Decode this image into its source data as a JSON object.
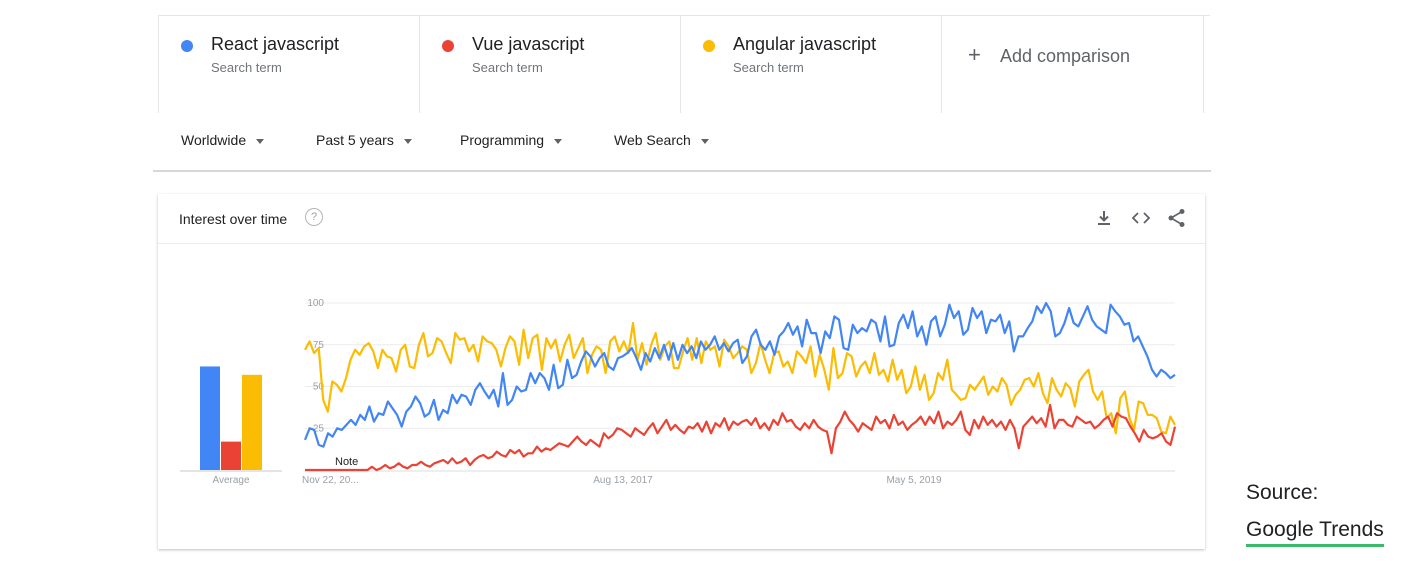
{
  "terms": [
    {
      "name": "React javascript",
      "sub": "Search term",
      "color": "#4285f4"
    },
    {
      "name": "Vue javascript",
      "sub": "Search term",
      "color": "#ea4335"
    },
    {
      "name": "Angular javascript",
      "sub": "Search term",
      "color": "#fbbc04"
    }
  ],
  "add_comparison": {
    "icon": "plus-icon",
    "label": "Add comparison"
  },
  "filters": [
    "Worldwide",
    "Past 5 years",
    "Programming",
    "Web Search"
  ],
  "card": {
    "title": "Interest over time",
    "help_icon": "question-circle-icon",
    "help_glyph": "?",
    "actions": [
      "download-icon",
      "embed-code-icon",
      "share-icon"
    ]
  },
  "chart_data": {
    "type": "line",
    "y_ticks": [
      "100",
      "75",
      "50",
      "25"
    ],
    "ylim": [
      0,
      100
    ],
    "x_ticks": [
      "Nov 22, 20...",
      "Aug 13, 2017",
      "May 5, 2019"
    ],
    "note": "Note",
    "grid": true,
    "average": {
      "label": "Average",
      "values": [
        62,
        17,
        57
      ]
    },
    "series": [
      {
        "name": "React javascript",
        "color": "#4285f4",
        "values": [
          18,
          25,
          24,
          15,
          14,
          22,
          20,
          25,
          24,
          27,
          30,
          27,
          33,
          30,
          38,
          29,
          34,
          33,
          41,
          37,
          33,
          26,
          35,
          38,
          44,
          40,
          32,
          34,
          42,
          30,
          36,
          34,
          45,
          40,
          45,
          44,
          39,
          48,
          52,
          47,
          43,
          48,
          38,
          58,
          39,
          42,
          50,
          47,
          48,
          58,
          52,
          58,
          55,
          48,
          63,
          49,
          51,
          66,
          55,
          57,
          65,
          71,
          68,
          62,
          67,
          70,
          62,
          60,
          67,
          68,
          70,
          73,
          67,
          60,
          70,
          65,
          73,
          67,
          75,
          66,
          76,
          66,
          75,
          70,
          74,
          67,
          77,
          72,
          75,
          80,
          72,
          76,
          71,
          76,
          78,
          64,
          68,
          80,
          84,
          75,
          72,
          77,
          69,
          80,
          83,
          88,
          81,
          86,
          74,
          90,
          82,
          82,
          70,
          83,
          79,
          92,
          90,
          73,
          72,
          87,
          82,
          85,
          83,
          90,
          88,
          77,
          92,
          74,
          75,
          88,
          93,
          85,
          95,
          80,
          86,
          75,
          89,
          92,
          80,
          87,
          99,
          91,
          95,
          81,
          84,
          97,
          91,
          95,
          82,
          90,
          89,
          93,
          82,
          89,
          71,
          80,
          80,
          85,
          89,
          98,
          94,
          100,
          95,
          80,
          82,
          88,
          97,
          88,
          86,
          92,
          98,
          90,
          86,
          84,
          82,
          99,
          95,
          92,
          87,
          88,
          77,
          80,
          74,
          68,
          60,
          56,
          60,
          58,
          55,
          57
        ]
      },
      {
        "name": "Vue javascript",
        "color": "#ea4335",
        "values": [
          0,
          0,
          0,
          0,
          0,
          0,
          0,
          0,
          0,
          0,
          0,
          0,
          0,
          0,
          0,
          2,
          0,
          1,
          3,
          1,
          2,
          4,
          2,
          1,
          3,
          3,
          5,
          3,
          2,
          4,
          5,
          6,
          4,
          7,
          4,
          5,
          7,
          3,
          6,
          8,
          9,
          7,
          8,
          11,
          9,
          8,
          12,
          10,
          12,
          8,
          10,
          10,
          14,
          11,
          13,
          12,
          14,
          16,
          15,
          14,
          17,
          20,
          17,
          15,
          18,
          16,
          14,
          22,
          19,
          21,
          25,
          24,
          22,
          20,
          25,
          23,
          21,
          25,
          28,
          22,
          26,
          30,
          24,
          27,
          24,
          22,
          26,
          25,
          28,
          23,
          29,
          22,
          28,
          26,
          31,
          24,
          29,
          27,
          29,
          30,
          27,
          31,
          25,
          28,
          24,
          30,
          27,
          34,
          29,
          30,
          26,
          24,
          28,
          25,
          30,
          26,
          24,
          23,
          10,
          25,
          29,
          35,
          30,
          27,
          23,
          28,
          26,
          24,
          32,
          28,
          30,
          25,
          33,
          27,
          29,
          24,
          27,
          29,
          32,
          27,
          32,
          28,
          35,
          25,
          29,
          27,
          30,
          35,
          24,
          21,
          30,
          25,
          32,
          27,
          30,
          26,
          29,
          24,
          30,
          25,
          13,
          26,
          29,
          32,
          28,
          31,
          26,
          39,
          25,
          30,
          30,
          27,
          26,
          32,
          30,
          28,
          29,
          25,
          27,
          30,
          32,
          26,
          34,
          32,
          31,
          26,
          22,
          17,
          24,
          20,
          19,
          20,
          22,
          17,
          15,
          26
        ]
      },
      {
        "name": "Angular javascript",
        "color": "#fbbc04",
        "values": [
          72,
          77,
          70,
          73,
          42,
          35,
          53,
          51,
          47,
          55,
          66,
          72,
          69,
          74,
          76,
          71,
          61,
          72,
          68,
          67,
          59,
          72,
          75,
          62,
          61,
          75,
          82,
          68,
          70,
          79,
          77,
          70,
          64,
          82,
          78,
          79,
          71,
          75,
          65,
          80,
          77,
          76,
          72,
          62,
          73,
          80,
          77,
          63,
          84,
          67,
          79,
          81,
          60,
          79,
          73,
          78,
          65,
          75,
          81,
          67,
          73,
          79,
          58,
          69,
          74,
          72,
          58,
          77,
          80,
          71,
          77,
          70,
          88,
          66,
          76,
          63,
          75,
          82,
          66,
          74,
          77,
          61,
          61,
          71,
          79,
          66,
          79,
          64,
          77,
          72,
          74,
          62,
          78,
          74,
          67,
          70,
          74,
          72,
          58,
          64,
          76,
          66,
          58,
          70,
          71,
          62,
          65,
          58,
          71,
          68,
          64,
          74,
          56,
          69,
          60,
          48,
          73,
          55,
          58,
          70,
          68,
          56,
          62,
          65,
          58,
          70,
          57,
          60,
          53,
          66,
          54,
          60,
          46,
          50,
          62,
          48,
          57,
          42,
          46,
          58,
          54,
          66,
          48,
          45,
          42,
          43,
          51,
          48,
          52,
          56,
          45,
          50,
          47,
          55,
          51,
          39,
          45,
          48,
          54,
          55,
          50,
          58,
          46,
          40,
          55,
          48,
          44,
          52,
          49,
          38,
          53,
          57,
          60,
          47,
          42,
          47,
          31,
          34,
          22,
          43,
          47,
          31,
          24,
          41,
          40,
          33,
          33,
          31,
          23,
          22,
          32,
          27
        ]
      }
    ]
  },
  "source": {
    "label": "Source:",
    "link": "Google Trends"
  }
}
